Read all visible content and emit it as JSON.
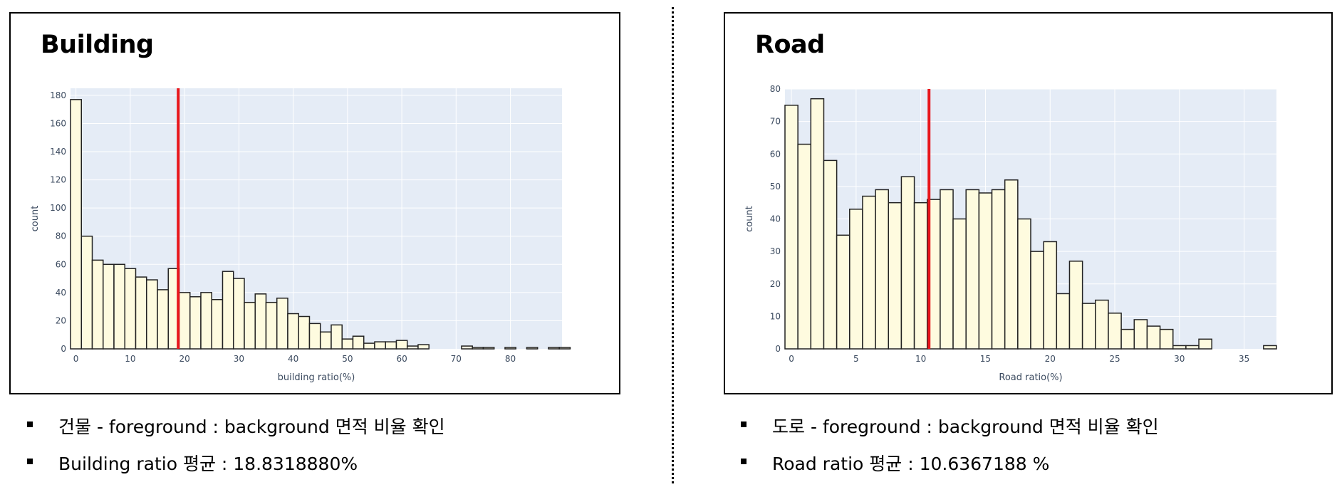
{
  "chart_data": [
    {
      "type": "bar",
      "title": "Building",
      "xlabel": "building ratio(%)",
      "ylabel": "count",
      "xlim": [
        -1,
        89.5
      ],
      "ylim": [
        0,
        185
      ],
      "x_ticks": [
        0,
        10,
        20,
        30,
        40,
        50,
        60,
        70,
        80
      ],
      "y_ticks": [
        0,
        20,
        40,
        60,
        80,
        100,
        120,
        140,
        160,
        180
      ],
      "bin_start": -1,
      "bin_width": 2,
      "values": [
        177,
        80,
        63,
        60,
        60,
        57,
        51,
        49,
        42,
        57,
        40,
        37,
        40,
        35,
        55,
        50,
        33,
        39,
        33,
        36,
        25,
        23,
        18,
        12,
        17,
        7,
        9,
        4,
        5,
        5,
        6,
        2,
        3,
        0,
        0,
        0,
        2,
        1,
        1,
        0,
        1,
        0,
        1,
        0,
        1,
        1
      ],
      "mean": 18.831888,
      "mean_color": "#e8161b",
      "bar_color": "#fefbdf",
      "plot_bg": "#e5ecf6",
      "grid": true
    },
    {
      "type": "bar",
      "title": "Road",
      "xlabel": "Road ratio(%)",
      "ylabel": "count",
      "xlim": [
        -0.5,
        37.5
      ],
      "ylim": [
        0,
        80
      ],
      "x_ticks": [
        0,
        5,
        10,
        15,
        20,
        25,
        30,
        35
      ],
      "y_ticks": [
        0,
        10,
        20,
        30,
        40,
        50,
        60,
        70,
        80
      ],
      "bin_start": -0.5,
      "bin_width": 1,
      "values": [
        75,
        63,
        77,
        58,
        35,
        43,
        47,
        49,
        45,
        53,
        45,
        46,
        49,
        40,
        49,
        48,
        49,
        52,
        40,
        30,
        33,
        17,
        27,
        14,
        15,
        11,
        6,
        9,
        7,
        6,
        1,
        1,
        3,
        0,
        0,
        0,
        0,
        1
      ],
      "mean": 10.6367188,
      "mean_color": "#e8161b",
      "bar_color": "#fefbdf",
      "plot_bg": "#e5ecf6",
      "grid": true
    }
  ],
  "left": {
    "title": "Building",
    "bullets": [
      "건물 - foreground : background 면적 비율 확인",
      "Building ratio 평균 : 18.8318880%"
    ]
  },
  "right": {
    "title": "Road",
    "bullets": [
      "도로 - foreground : background 면적 비율 확인",
      "Road ratio 평균 : 10.6367188 %"
    ]
  }
}
